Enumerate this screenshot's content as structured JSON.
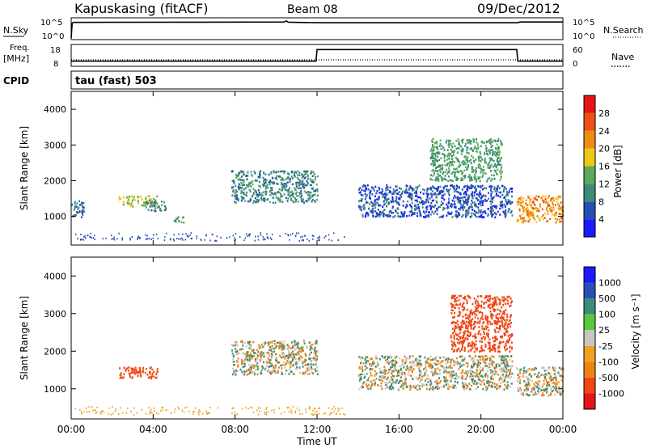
{
  "header": {
    "station": "Kapuskasing (fitACF)",
    "beam": "Beam 08",
    "date": "09/Dec/2012"
  },
  "strips": {
    "nsky_label": "N.Sky",
    "nsky_ticks": [
      "10^5",
      "10^0"
    ],
    "nsearch_label": "N.Search",
    "nsearch_ticks": [
      "10^5",
      "10^0"
    ],
    "freq_label": "Freq.",
    "freq_unit": "[MHz]",
    "freq_ticks": [
      "18",
      "8"
    ],
    "nave_label": "Nave",
    "nave_ticks": [
      "60",
      "0"
    ],
    "cpid_label": "CPID",
    "cpid_value": "tau (fast) 503"
  },
  "colors": {
    "power": [
      "#1a1aff",
      "#2850b4",
      "#3c8c78",
      "#5aaa5a",
      "#f0c814",
      "#f08c14",
      "#f05014",
      "#e61414"
    ],
    "velocity": [
      "#e61414",
      "#f04614",
      "#f08214",
      "#f0a01e",
      "#c8c8c0",
      "#5ac83c",
      "#3c8c78",
      "#2850b4",
      "#1a1aff"
    ],
    "ground_scatter": "#c8c8c0"
  },
  "chart_data": [
    {
      "type": "heatmap",
      "name": "power",
      "xlabel": "Time UT",
      "ylabel": "Slant Range [km]",
      "x_ticks": [
        "00:00",
        "04:00",
        "08:00",
        "12:00",
        "16:00",
        "20:00",
        "00:00"
      ],
      "y_ticks": [
        1000,
        2000,
        3000,
        4000
      ],
      "xlim": [
        0,
        24
      ],
      "ylim": [
        200,
        4500
      ],
      "colorbar": {
        "label": "Power [dB]",
        "ticks": [
          4,
          8,
          12,
          16,
          20,
          24,
          28
        ],
        "range": [
          0,
          32
        ]
      },
      "regions": [
        {
          "x": [
            0.0,
            0.6
          ],
          "y": [
            1000,
            1500
          ],
          "value": 8
        },
        {
          "x": [
            2.3,
            4.2
          ],
          "y": [
            1300,
            1600
          ],
          "value": 16
        },
        {
          "x": [
            3.6,
            4.6
          ],
          "y": [
            1150,
            1450
          ],
          "value": 10
        },
        {
          "x": [
            5.0,
            5.5
          ],
          "y": [
            850,
            1050
          ],
          "value": 12
        },
        {
          "x": [
            7.8,
            12.0
          ],
          "y": [
            1400,
            2300
          ],
          "value": 10
        },
        {
          "x": [
            14.0,
            21.5
          ],
          "y": [
            1000,
            1900
          ],
          "value": 6
        },
        {
          "x": [
            17.5,
            21.0
          ],
          "y": [
            2000,
            3200
          ],
          "value": 12
        },
        {
          "x": [
            21.7,
            24.0
          ],
          "y": [
            850,
            1600
          ],
          "value": 22
        }
      ]
    },
    {
      "type": "heatmap",
      "name": "velocity",
      "xlabel": "Time UT",
      "ylabel": "Slant Range [km]",
      "x_ticks": [
        "00:00",
        "04:00",
        "08:00",
        "12:00",
        "16:00",
        "20:00",
        "00:00"
      ],
      "y_ticks": [
        1000,
        2000,
        3000,
        4000
      ],
      "xlim": [
        0,
        24
      ],
      "ylim": [
        200,
        4500
      ],
      "colorbar": {
        "label": "Velocity [m s⁻¹]",
        "ticks": [
          "1000",
          "500",
          "100",
          "25",
          "-25",
          "-100",
          "-500",
          "-1000"
        ]
      },
      "regions": [
        {
          "x": [
            2.3,
            4.2
          ],
          "y": [
            1300,
            1600
          ],
          "value": -200
        },
        {
          "x": [
            7.8,
            12.0
          ],
          "y": [
            1400,
            2300
          ],
          "value": 0
        },
        {
          "x": [
            14.0,
            21.5
          ],
          "y": [
            1000,
            1900
          ],
          "value": 0
        },
        {
          "x": [
            18.5,
            21.5
          ],
          "y": [
            2000,
            3500
          ],
          "value": -300
        },
        {
          "x": [
            21.7,
            24.0
          ],
          "y": [
            850,
            1600
          ],
          "value": 0
        }
      ]
    }
  ],
  "noise_series": {
    "nsky_x": [
      0.0,
      0.05,
      0.1,
      6.0,
      10.4,
      10.5,
      10.6,
      12.0,
      21.8,
      21.9,
      24.0
    ],
    "nsky_y": [
      0.0,
      4.2,
      4.4,
      4.45,
      4.5,
      4.8,
      4.45,
      4.3,
      4.3,
      4.5,
      4.5
    ],
    "freq_x": [
      0.0,
      11.95,
      12.0,
      21.75,
      21.8,
      24.0
    ],
    "freq_y": [
      10.0,
      10.0,
      16.5,
      16.5,
      10.0,
      10.0
    ]
  }
}
